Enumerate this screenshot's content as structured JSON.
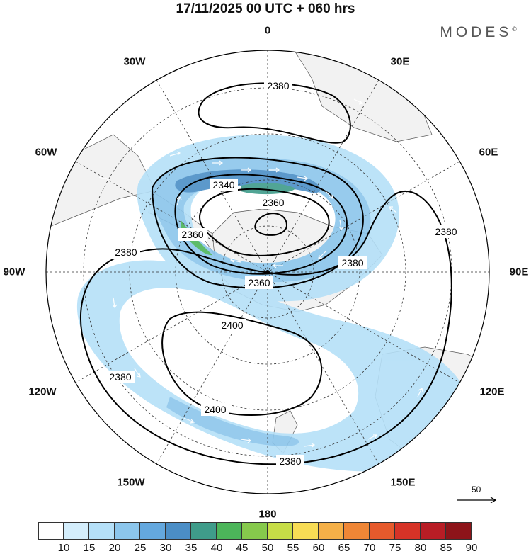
{
  "title": "17/11/2025  00 UTC  + 060 hrs",
  "brand": "MODES",
  "brand_mark": "©",
  "longitude_labels": {
    "l0": "0",
    "l30e": "30E",
    "l60e": "60E",
    "l90e": "90E",
    "l120e": "120E",
    "l150e": "150E",
    "l180": "180",
    "l150w": "150W",
    "l120w": "120W",
    "l90w": "90W",
    "l60w": "60W",
    "l30w": "30W"
  },
  "contour_labels": [
    "2380",
    "2340",
    "2360",
    "2380",
    "2360",
    "2380",
    "2380",
    "2360",
    "2400",
    "2400",
    "2380",
    "2380"
  ],
  "vector_reference": {
    "value": "50"
  },
  "colorbar": {
    "ticks": [
      "10",
      "15",
      "20",
      "25",
      "30",
      "35",
      "40",
      "45",
      "50",
      "55",
      "60",
      "65",
      "70",
      "75",
      "80",
      "85",
      "90"
    ],
    "colors": [
      "#ffffff",
      "#d4eefc",
      "#b5e0f8",
      "#8cc6ec",
      "#64a8de",
      "#4b8ec6",
      "#3f9c8a",
      "#4cb55a",
      "#86c94c",
      "#c7dd47",
      "#f7dc55",
      "#f5b048",
      "#ef8636",
      "#e65a2c",
      "#d63327",
      "#b81d25",
      "#8d1419"
    ]
  },
  "colors": {
    "land": "#f2f2f2",
    "contour": "#000000",
    "graticule": "#333333"
  },
  "icons": {
    "vector_reference_arrow": "right-arrow-icon"
  }
}
